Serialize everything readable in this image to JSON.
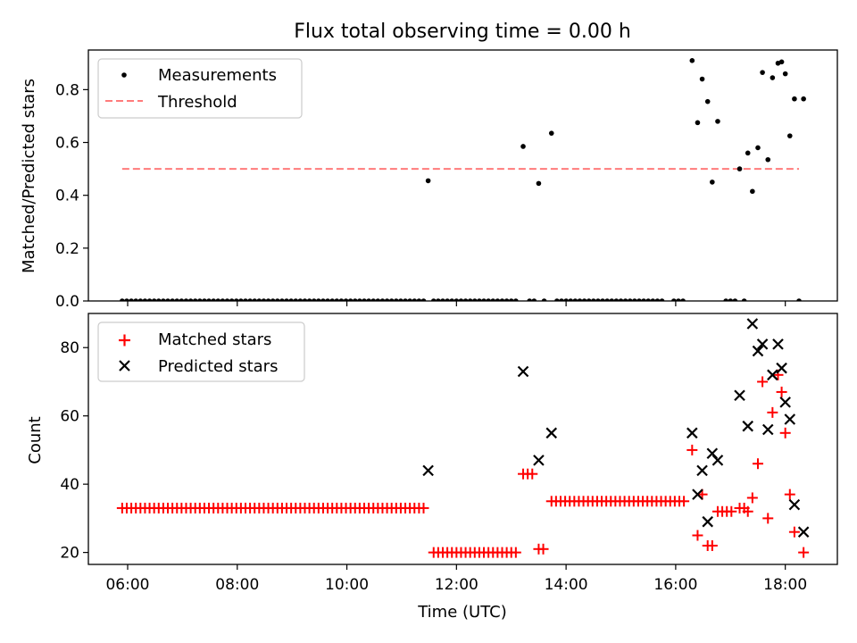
{
  "chart_data": [
    {
      "type": "scatter",
      "title": "Flux total observing time = 0.00 h",
      "xlabel": "",
      "ylabel": "Matched/Predicted stars",
      "xlim": [
        "05:17",
        "18:57"
      ],
      "ylim": [
        0,
        0.95
      ],
      "yticks": [
        {
          "v": 0.0,
          "label": "0.0"
        },
        {
          "v": 0.2,
          "label": "0.2"
        },
        {
          "v": 0.4,
          "label": "0.4"
        },
        {
          "v": 0.6,
          "label": "0.6"
        },
        {
          "v": 0.8,
          "label": "0.8"
        }
      ],
      "legend_position": "top-left",
      "series": [
        {
          "name": "Measurements",
          "kind": "dot",
          "color": "#000000",
          "points": [
            {
              "x": "11:29",
              "y": 0.455
            },
            {
              "x": "13:13",
              "y": 0.585
            },
            {
              "x": "13:30",
              "y": 0.445
            },
            {
              "x": "13:44",
              "y": 0.635
            },
            {
              "x": "16:18",
              "y": 0.91
            },
            {
              "x": "16:24",
              "y": 0.675
            },
            {
              "x": "16:29",
              "y": 0.84
            },
            {
              "x": "16:35",
              "y": 0.755
            },
            {
              "x": "16:40",
              "y": 0.45
            },
            {
              "x": "16:46",
              "y": 0.68
            },
            {
              "x": "17:10",
              "y": 0.5
            },
            {
              "x": "17:19",
              "y": 0.56
            },
            {
              "x": "17:24",
              "y": 0.415
            },
            {
              "x": "17:30",
              "y": 0.58
            },
            {
              "x": "17:35",
              "y": 0.865
            },
            {
              "x": "17:41",
              "y": 0.535
            },
            {
              "x": "17:46",
              "y": 0.845
            },
            {
              "x": "17:52",
              "y": 0.9
            },
            {
              "x": "17:56",
              "y": 0.905
            },
            {
              "x": "18:00",
              "y": 0.86
            },
            {
              "x": "18:05",
              "y": 0.625
            },
            {
              "x": "18:10",
              "y": 0.765
            },
            {
              "x": "18:20",
              "y": 0.765
            }
          ],
          "zero_runs": [
            {
              "from": "05:54",
              "to": "11:24",
              "step_min": 5
            },
            {
              "from": "11:35",
              "to": "13:08",
              "step_min": 5
            },
            {
              "from": "13:20",
              "to": "13:25",
              "step_min": 5
            },
            {
              "from": "13:36",
              "to": "13:39",
              "step_min": 5
            },
            {
              "from": "13:50",
              "to": "15:45",
              "step_min": 5
            },
            {
              "from": "15:58",
              "to": "16:12",
              "step_min": 5
            },
            {
              "from": "16:55",
              "to": "17:05",
              "step_min": 5
            },
            {
              "from": "17:15",
              "to": "17:15",
              "step_min": 5
            },
            {
              "from": "18:15",
              "to": "18:15",
              "step_min": 5
            }
          ]
        },
        {
          "name": "Threshold",
          "kind": "dashed-line",
          "color": "#ff7b7b",
          "points": [
            {
              "x": "05:54",
              "y": 0.5
            },
            {
              "x": "18:15",
              "y": 0.5
            }
          ]
        }
      ]
    },
    {
      "type": "scatter",
      "xlabel": "Time (UTC)",
      "ylabel": "Count",
      "xlim": [
        "05:17",
        "18:57"
      ],
      "ylim": [
        16.5,
        90
      ],
      "yticks": [
        {
          "v": 20,
          "label": "20"
        },
        {
          "v": 40,
          "label": "40"
        },
        {
          "v": 60,
          "label": "60"
        },
        {
          "v": 80,
          "label": "80"
        }
      ],
      "xticks": [
        {
          "v": "06:00",
          "label": "06:00"
        },
        {
          "v": "08:00",
          "label": "08:00"
        },
        {
          "v": "10:00",
          "label": "10:00"
        },
        {
          "v": "12:00",
          "label": "12:00"
        },
        {
          "v": "14:00",
          "label": "14:00"
        },
        {
          "v": "16:00",
          "label": "16:00"
        },
        {
          "v": "18:00",
          "label": "18:00"
        }
      ],
      "legend_position": "top-left",
      "series": [
        {
          "name": "Matched stars",
          "kind": "plus",
          "color": "#ff0000",
          "runs": [
            {
              "from": "05:54",
              "to": "11:24",
              "step_min": 5,
              "y": 33
            },
            {
              "from": "11:35",
              "to": "13:08",
              "step_min": 5,
              "y": 20
            },
            {
              "from": "13:13",
              "to": "13:25",
              "step_min": 5,
              "y": 43
            },
            {
              "from": "13:30",
              "to": "13:39",
              "step_min": 5,
              "y": 21
            },
            {
              "from": "13:44",
              "to": "16:12",
              "step_min": 5,
              "y": 35
            },
            {
              "from": "16:46",
              "to": "17:05",
              "step_min": 5,
              "y": 32
            }
          ],
          "points": [
            {
              "x": "16:18",
              "y": 50
            },
            {
              "x": "16:24",
              "y": 25
            },
            {
              "x": "16:29",
              "y": 37
            },
            {
              "x": "16:35",
              "y": 22
            },
            {
              "x": "16:40",
              "y": 22
            },
            {
              "x": "17:10",
              "y": 33
            },
            {
              "x": "17:15",
              "y": 33
            },
            {
              "x": "17:19",
              "y": 32
            },
            {
              "x": "17:24",
              "y": 36
            },
            {
              "x": "17:30",
              "y": 46
            },
            {
              "x": "17:35",
              "y": 70
            },
            {
              "x": "17:41",
              "y": 30
            },
            {
              "x": "17:46",
              "y": 61
            },
            {
              "x": "17:52",
              "y": 72
            },
            {
              "x": "17:56",
              "y": 67
            },
            {
              "x": "18:00",
              "y": 55
            },
            {
              "x": "18:05",
              "y": 37
            },
            {
              "x": "18:10",
              "y": 26
            },
            {
              "x": "18:20",
              "y": 20
            }
          ]
        },
        {
          "name": "Predicted stars",
          "kind": "x",
          "color": "#000000",
          "points": [
            {
              "x": "11:29",
              "y": 44
            },
            {
              "x": "13:13",
              "y": 73
            },
            {
              "x": "13:30",
              "y": 47
            },
            {
              "x": "13:44",
              "y": 55
            },
            {
              "x": "16:18",
              "y": 55
            },
            {
              "x": "16:24",
              "y": 37
            },
            {
              "x": "16:29",
              "y": 44
            },
            {
              "x": "16:35",
              "y": 29
            },
            {
              "x": "16:40",
              "y": 49
            },
            {
              "x": "16:46",
              "y": 47
            },
            {
              "x": "17:10",
              "y": 66
            },
            {
              "x": "17:19",
              "y": 57
            },
            {
              "x": "17:24",
              "y": 87
            },
            {
              "x": "17:30",
              "y": 79
            },
            {
              "x": "17:35",
              "y": 81
            },
            {
              "x": "17:41",
              "y": 56
            },
            {
              "x": "17:46",
              "y": 72
            },
            {
              "x": "17:52",
              "y": 81
            },
            {
              "x": "17:56",
              "y": 74
            },
            {
              "x": "18:00",
              "y": 64
            },
            {
              "x": "18:05",
              "y": 59
            },
            {
              "x": "18:10",
              "y": 34
            },
            {
              "x": "18:20",
              "y": 26
            }
          ]
        }
      ]
    }
  ]
}
